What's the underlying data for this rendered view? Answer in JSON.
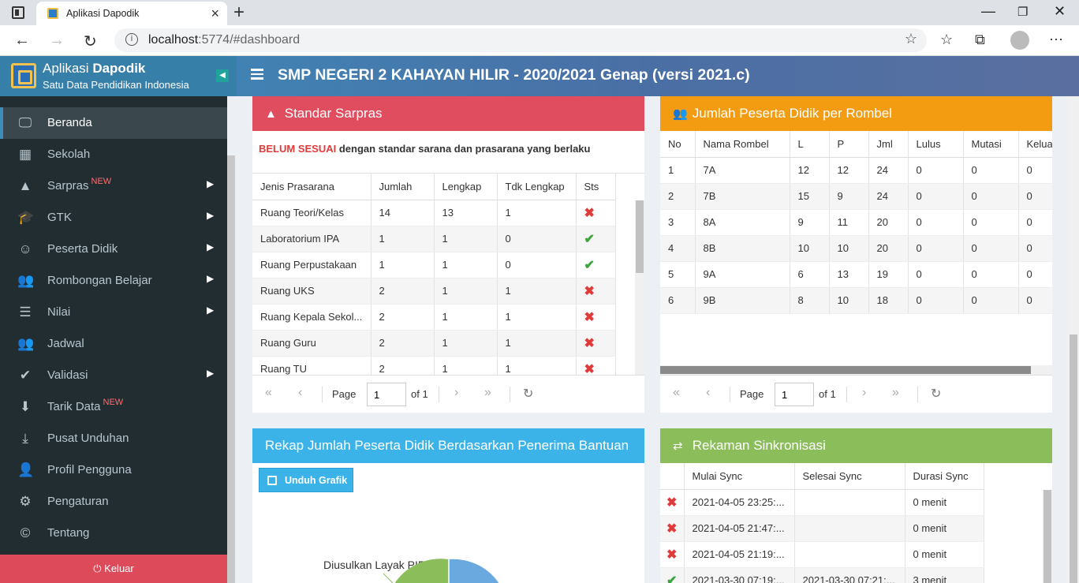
{
  "browser": {
    "tab_title": "Aplikasi Dapodik",
    "url_host": "localhost",
    "url_rest": ":5774/#dashboard"
  },
  "app": {
    "name_prefix": "Aplikasi ",
    "name_bold": "Dapodik",
    "subtitle": "Satu Data Pendidikan Indonesia",
    "school_title": "SMP NEGERI 2 KAHAYAN HILIR - 2020/2021 Genap (versi 2021.c)"
  },
  "sidebar": {
    "items": [
      {
        "label": "Beranda",
        "icon": "monitor-icon",
        "new": "",
        "caret": false
      },
      {
        "label": "Sekolah",
        "icon": "building-icon",
        "new": "",
        "caret": false
      },
      {
        "label": "Sarpras",
        "icon": "road-icon",
        "new": "NEW",
        "caret": true
      },
      {
        "label": "GTK",
        "icon": "graduation-cap-icon",
        "new": "",
        "caret": true
      },
      {
        "label": "Peserta Didik",
        "icon": "smile-icon",
        "new": "",
        "caret": true
      },
      {
        "label": "Rombongan Belajar",
        "icon": "users-icon",
        "new": "",
        "caret": true
      },
      {
        "label": "Nilai",
        "icon": "list-icon",
        "new": "",
        "caret": true
      },
      {
        "label": "Jadwal",
        "icon": "users-icon",
        "new": "",
        "caret": false
      },
      {
        "label": "Validasi",
        "icon": "check-icon",
        "new": "",
        "caret": true
      },
      {
        "label": "Tarik Data",
        "icon": "arrow-down-icon",
        "new": "NEW",
        "caret": false
      },
      {
        "label": "Pusat Unduhan",
        "icon": "download-icon",
        "new": "",
        "caret": false
      },
      {
        "label": "Profil Pengguna",
        "icon": "user-icon",
        "new": "",
        "caret": false
      },
      {
        "label": "Pengaturan",
        "icon": "gear-icon",
        "new": "",
        "caret": false
      },
      {
        "label": "Tentang",
        "icon": "copyright-icon",
        "new": "",
        "caret": false
      }
    ],
    "logout": "Keluar"
  },
  "sarpras": {
    "title": "Standar Sarpras",
    "notice_bold": "BELUM SESUAI",
    "notice_rest": " dengan standar sarana dan prasarana yang berlaku",
    "columns": [
      "Jenis Prasarana",
      "Jumlah",
      "Lengkap",
      "Tdk Lengkap",
      "Sts"
    ],
    "rows": [
      {
        "jenis": "Ruang Teori/Kelas",
        "jumlah": "14",
        "lengkap": "13",
        "tdk": "1",
        "ok": false
      },
      {
        "jenis": "Laboratorium IPA",
        "jumlah": "1",
        "lengkap": "1",
        "tdk": "0",
        "ok": true
      },
      {
        "jenis": "Ruang Perpustakaan",
        "jumlah": "1",
        "lengkap": "1",
        "tdk": "0",
        "ok": true
      },
      {
        "jenis": "Ruang UKS",
        "jumlah": "2",
        "lengkap": "1",
        "tdk": "1",
        "ok": false
      },
      {
        "jenis": "Ruang Kepala Sekol...",
        "jumlah": "2",
        "lengkap": "1",
        "tdk": "1",
        "ok": false
      },
      {
        "jenis": "Ruang Guru",
        "jumlah": "2",
        "lengkap": "1",
        "tdk": "1",
        "ok": false
      },
      {
        "jenis": "Ruang TU",
        "jumlah": "2",
        "lengkap": "1",
        "tdk": "1",
        "ok": false
      }
    ],
    "pager": {
      "page_label": "Page",
      "page_value": "1",
      "of_label": "of 1"
    }
  },
  "rombel": {
    "title": "Jumlah Peserta Didik per Rombel",
    "columns": [
      "No",
      "Nama Rombel",
      "L",
      "P",
      "Jml",
      "Lulus",
      "Mutasi",
      "Kelua"
    ],
    "rows": [
      [
        "1",
        "7A",
        "12",
        "12",
        "24",
        "0",
        "0",
        "0"
      ],
      [
        "2",
        "7B",
        "15",
        "9",
        "24",
        "0",
        "0",
        "0"
      ],
      [
        "3",
        "8A",
        "9",
        "11",
        "20",
        "0",
        "0",
        "0"
      ],
      [
        "4",
        "8B",
        "10",
        "10",
        "20",
        "0",
        "0",
        "0"
      ],
      [
        "5",
        "9A",
        "6",
        "13",
        "19",
        "0",
        "0",
        "0"
      ],
      [
        "6",
        "9B",
        "8",
        "10",
        "18",
        "0",
        "0",
        "0"
      ]
    ],
    "pager": {
      "page_label": "Page",
      "page_value": "1",
      "of_label": "of 1"
    }
  },
  "bantuan": {
    "title": "Rekap Jumlah Peserta Didik Berdasarkan Penerima Bantuan",
    "download_label": "Unduh Grafik",
    "pie_label": "Diusulkan Layak PIP"
  },
  "sync": {
    "title": "Rekaman Sinkronisasi",
    "columns": [
      "",
      "Mulai Sync",
      "Selesai Sync",
      "Durasi Sync"
    ],
    "rows": [
      {
        "ok": false,
        "mulai": "2021-04-05 23:25:...",
        "selesai": "",
        "durasi": "0 menit"
      },
      {
        "ok": false,
        "mulai": "2021-04-05 21:47:...",
        "selesai": "",
        "durasi": "0 menit"
      },
      {
        "ok": false,
        "mulai": "2021-04-05 21:19:...",
        "selesai": "",
        "durasi": "0 menit"
      },
      {
        "ok": true,
        "mulai": "2021-03-30 07:19:...",
        "selesai": "2021-03-30 07:21:...",
        "durasi": "3 menit"
      }
    ]
  }
}
